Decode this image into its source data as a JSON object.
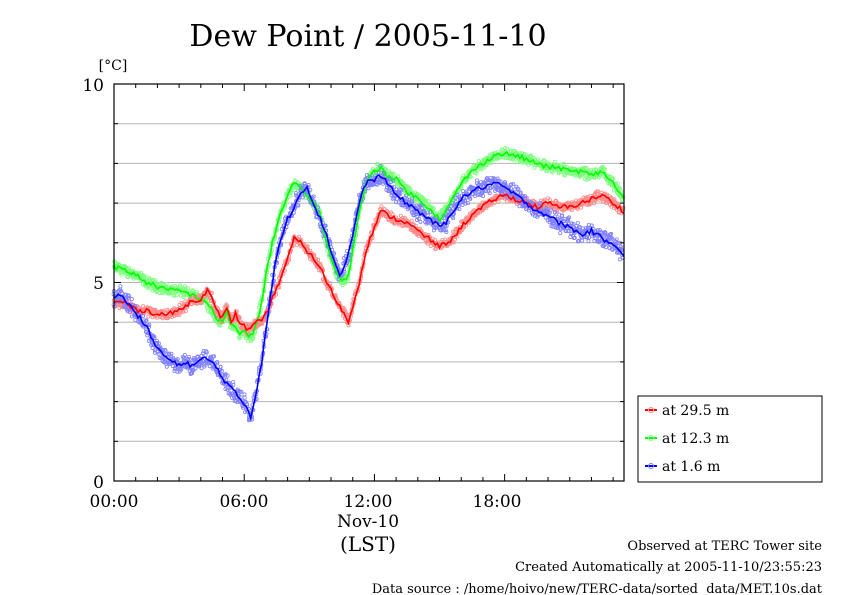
{
  "chart_data": {
    "type": "line",
    "title": "Dew Point / 2005-11-10",
    "ylabel": "[°C]",
    "ylim": [
      0,
      10
    ],
    "xlim_hours": [
      0,
      23.5
    ],
    "y_ticks": [
      "0",
      "5",
      "10"
    ],
    "x_ticks": [
      {
        "hour": 0,
        "label": "00:00"
      },
      {
        "hour": 6,
        "label": "06:00"
      },
      {
        "hour": 12,
        "label": "12:00"
      },
      {
        "hour": 18,
        "label": "18:00"
      }
    ],
    "x_date_label": "Nov-10",
    "x_zone_label": "(LST)",
    "grid": "horizontal",
    "legend_position": "right",
    "series": [
      {
        "name": "at 29.5 m",
        "color": "#ff0000",
        "scatter_color": "#ff8a8a",
        "spread": 0.1,
        "x": [
          0,
          0.5,
          1,
          1.5,
          2,
          2.5,
          3,
          3.5,
          4,
          4.3,
          4.5,
          4.7,
          5,
          5.2,
          5.4,
          5.6,
          5.8,
          6,
          6.2,
          6.4,
          6.6,
          6.8,
          7,
          7.3,
          7.6,
          8,
          8.3,
          8.6,
          8.9,
          9.2,
          9.5,
          9.8,
          10,
          10.2,
          10.5,
          10.8,
          11,
          11.3,
          11.6,
          12,
          12.3,
          12.6,
          13,
          13.5,
          14,
          14.5,
          15,
          15.3,
          15.6,
          16,
          16.5,
          17,
          17.5,
          18,
          18.5,
          19,
          19.5,
          20,
          20.5,
          21,
          21.5,
          22,
          22.5,
          23,
          23.5
        ],
        "y": [
          4.5,
          4.5,
          4.3,
          4.3,
          4.2,
          4.2,
          4.3,
          4.5,
          4.6,
          4.8,
          4.6,
          4.3,
          4.1,
          4.4,
          4.0,
          4.2,
          4.0,
          3.9,
          3.8,
          3.9,
          4.0,
          4.0,
          4.2,
          4.6,
          5.0,
          5.6,
          6.1,
          6.0,
          5.8,
          5.6,
          5.4,
          5.0,
          4.8,
          4.6,
          4.3,
          4.0,
          4.4,
          5.0,
          5.8,
          6.4,
          6.8,
          6.7,
          6.6,
          6.5,
          6.3,
          6.1,
          5.9,
          6.0,
          6.1,
          6.4,
          6.7,
          6.9,
          7.1,
          7.2,
          7.1,
          7.0,
          6.9,
          7.0,
          6.9,
          6.9,
          7.0,
          7.1,
          7.2,
          7.0,
          6.8
        ]
      },
      {
        "name": "at 12.3 m",
        "color": "#00ff00",
        "scatter_color": "#7dff7d",
        "spread": 0.11,
        "x": [
          0,
          0.5,
          1,
          1.5,
          2,
          2.5,
          3,
          3.5,
          4,
          4.3,
          4.5,
          4.7,
          5,
          5.2,
          5.4,
          5.6,
          5.8,
          6,
          6.2,
          6.4,
          6.6,
          6.8,
          7,
          7.3,
          7.6,
          8,
          8.3,
          8.6,
          8.9,
          9.2,
          9.5,
          9.8,
          10,
          10.2,
          10.5,
          10.8,
          11,
          11.3,
          11.6,
          12,
          12.3,
          12.6,
          13,
          13.5,
          14,
          14.5,
          15,
          15.3,
          15.6,
          16,
          16.5,
          17,
          17.5,
          18,
          18.5,
          19,
          19.5,
          20,
          20.5,
          21,
          21.5,
          22,
          22.5,
          23,
          23.5
        ],
        "y": [
          5.4,
          5.3,
          5.2,
          5.0,
          4.9,
          4.8,
          4.8,
          4.7,
          4.6,
          4.5,
          4.3,
          4.1,
          4.0,
          4.3,
          3.9,
          3.9,
          3.7,
          3.8,
          3.6,
          3.7,
          4.0,
          4.5,
          5.2,
          6.0,
          6.6,
          7.2,
          7.5,
          7.4,
          7.2,
          7.0,
          6.7,
          6.0,
          5.6,
          5.3,
          5.0,
          5.2,
          5.8,
          6.8,
          7.5,
          7.8,
          7.9,
          7.7,
          7.6,
          7.3,
          7.1,
          6.9,
          6.6,
          6.8,
          7.1,
          7.5,
          7.8,
          8.0,
          8.2,
          8.25,
          8.2,
          8.1,
          8.0,
          7.9,
          7.9,
          7.8,
          7.8,
          7.7,
          7.8,
          7.5,
          7.1
        ]
      },
      {
        "name": "at 1.6 m",
        "color": "#0000ff",
        "scatter_color": "#7f7fff",
        "spread": 0.17,
        "x": [
          0,
          0.3,
          0.6,
          0.9,
          1.2,
          1.5,
          1.8,
          2.1,
          2.4,
          2.7,
          3,
          3.3,
          3.6,
          3.9,
          4.2,
          4.5,
          4.8,
          5,
          5.3,
          5.6,
          5.9,
          6.1,
          6.3,
          6.5,
          6.8,
          7.1,
          7.4,
          7.7,
          8,
          8.3,
          8.6,
          8.9,
          9.2,
          9.5,
          9.8,
          10.1,
          10.4,
          10.7,
          11,
          11.3,
          11.6,
          12,
          12.3,
          12.6,
          13,
          13.5,
          14,
          14.5,
          15,
          15.3,
          15.6,
          16,
          16.5,
          17,
          17.5,
          18,
          18.5,
          19,
          19.5,
          20,
          20.5,
          21,
          21.5,
          22,
          22.5,
          23,
          23.5
        ],
        "y": [
          4.6,
          4.7,
          4.5,
          4.3,
          4.1,
          3.9,
          3.5,
          3.3,
          3.1,
          3.0,
          2.9,
          3.0,
          2.9,
          3.0,
          3.1,
          3.0,
          2.8,
          2.6,
          2.4,
          2.2,
          2.0,
          1.9,
          1.6,
          2.1,
          3.0,
          4.2,
          5.4,
          6.1,
          6.6,
          6.9,
          7.3,
          7.4,
          7.0,
          6.6,
          6.2,
          5.6,
          5.2,
          5.5,
          6.2,
          7.0,
          7.5,
          7.6,
          7.7,
          7.5,
          7.2,
          7.0,
          6.8,
          6.6,
          6.4,
          6.5,
          6.8,
          7.1,
          7.3,
          7.4,
          7.5,
          7.4,
          7.2,
          7.0,
          6.8,
          6.7,
          6.5,
          6.4,
          6.2,
          6.3,
          6.1,
          6.0,
          5.7
        ]
      }
    ]
  },
  "footer": {
    "line1": "Observed at TERC Tower site",
    "line2": "Created Automatically at 2005-11-10/23:55:23",
    "line3": "Data source : /home/hoivo/new/TERC-data/sorted  data/MET.10s.dat"
  }
}
